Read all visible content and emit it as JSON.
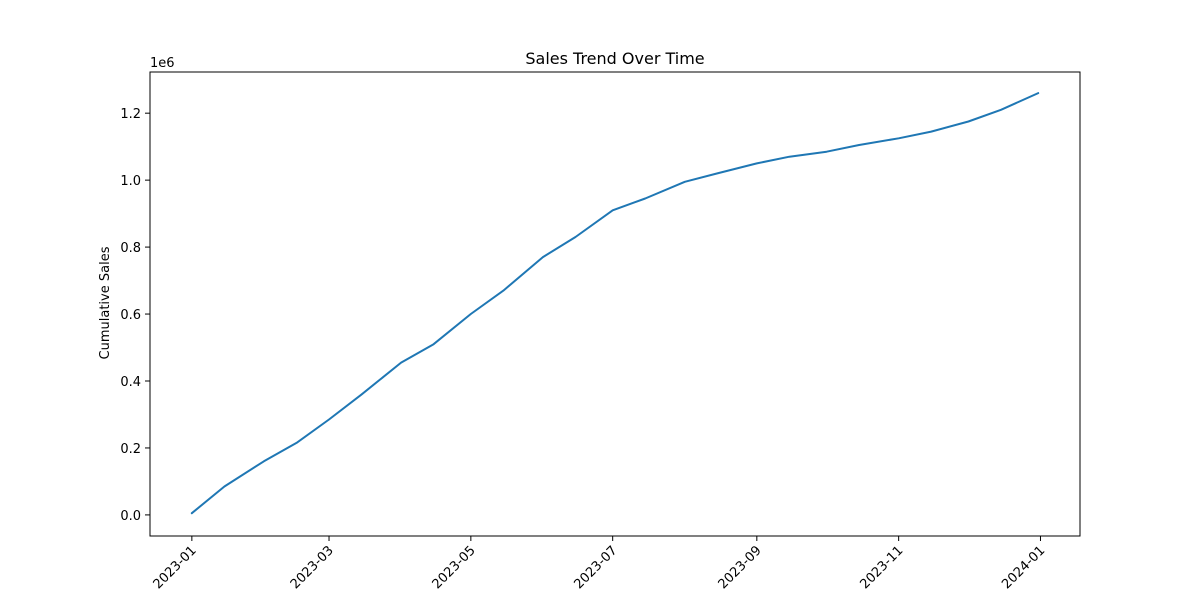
{
  "chart_data": {
    "type": "line",
    "title": "Sales Trend Over Time",
    "xlabel": "",
    "ylabel": "Cumulative Sales",
    "y_multiplier_label": "1e6",
    "x_ticks": [
      "2023-01",
      "2023-03",
      "2023-05",
      "2023-07",
      "2023-09",
      "2023-11",
      "2024-01"
    ],
    "y_ticks": [
      "0.0",
      "0.2",
      "0.4",
      "0.6",
      "0.8",
      "1.0",
      "1.2"
    ],
    "xlim": [
      "2022-12-14",
      "2024-01-18"
    ],
    "ylim": [
      -0.063,
      1.323
    ],
    "grid": false,
    "line_color": "#1f77b4",
    "series": [
      {
        "name": "",
        "x": [
          "2023-01-01",
          "2023-01-15",
          "2023-02-01",
          "2023-02-15",
          "2023-03-01",
          "2023-03-15",
          "2023-04-01",
          "2023-04-15",
          "2023-05-01",
          "2023-05-15",
          "2023-06-01",
          "2023-06-15",
          "2023-07-01",
          "2023-07-15",
          "2023-08-01",
          "2023-08-15",
          "2023-09-01",
          "2023-09-15",
          "2023-10-01",
          "2023-10-15",
          "2023-11-01",
          "2023-11-15",
          "2023-12-01",
          "2023-12-15",
          "2023-12-31"
        ],
        "y": [
          0.005,
          0.085,
          0.16,
          0.215,
          0.285,
          0.36,
          0.455,
          0.51,
          0.6,
          0.67,
          0.77,
          0.83,
          0.91,
          0.945,
          0.995,
          1.02,
          1.05,
          1.07,
          1.085,
          1.105,
          1.125,
          1.145,
          1.175,
          1.21,
          1.26
        ]
      }
    ]
  }
}
